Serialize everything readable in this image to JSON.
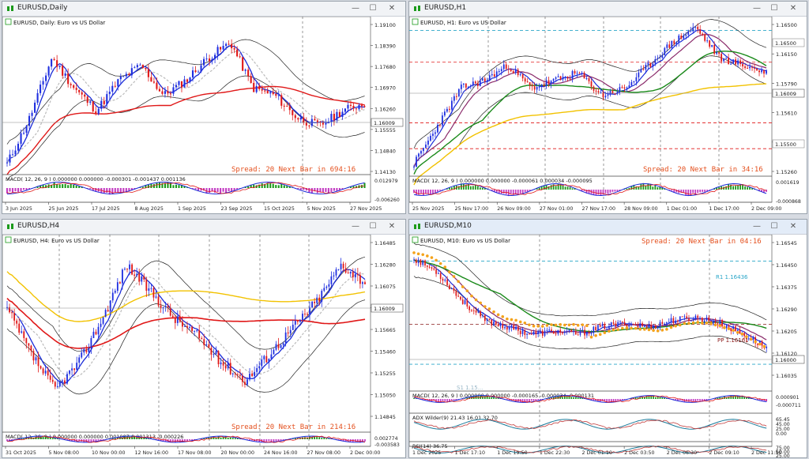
{
  "windows": [
    {
      "id": "daily",
      "title": "EURUSD,Daily",
      "label": "EURUSD, Daily:  Euro vs US Dollar",
      "price_ticks": [
        "1.19100",
        "1.18390",
        "1.17680",
        "1.16970",
        "1.16260",
        "1.15555",
        "1.14840",
        "1.14130"
      ],
      "current_price": "1.16009",
      "spread_text": "Spread: 20  Next Bar in 694:16",
      "macd_label": "MACD( 12, 26, 9 ) 0.000000 0.000000 -0.000301 -0.001437 0.001136",
      "macd_ticks": [
        "0.012979",
        "-0.006260"
      ],
      "time_ticks": [
        "3 Jun 2025",
        "25 Jun 2025",
        "17 Jul 2025",
        "8 Aug 2025",
        "1 Sep 2025",
        "23 Sep 2025",
        "15 Oct 2025",
        "5 Nov 2025",
        "27 Nov 2025"
      ]
    },
    {
      "id": "h1",
      "title": "EURUSD,H1",
      "label": "EURUSD, H1:  Euro vs US Dollar",
      "price_ticks": [
        "1.16500",
        "1.16150",
        "1.15790",
        "1.15610",
        "1.15430",
        "1.15260"
      ],
      "current_price": "1.16009",
      "level_tags": [
        "1.16500",
        "1.15500"
      ],
      "spread_text": "Spread: 20  Next Bar in 34:16",
      "macd_label": "MACD( 12, 26, 9 ) 0.000000 0.000000 -0.000061 0.000034 -0.000095",
      "macd_ticks": [
        "0.001619",
        "-0.000868"
      ],
      "time_ticks": [
        "25 Nov 2025",
        "25 Nov 17:00",
        "26 Nov 09:00",
        "27 Nov 01:00",
        "27 Nov 17:00",
        "28 Nov 09:00",
        "1 Dec 01:00",
        "1 Dec 17:00",
        "2 Dec 09:00"
      ]
    },
    {
      "id": "h4",
      "title": "EURUSD,H4",
      "label": "EURUSD, H4:  Euro vs US Dollar",
      "price_ticks": [
        "1.16485",
        "1.16280",
        "1.16075",
        "1.15870",
        "1.15665",
        "1.15460",
        "1.15255",
        "1.15050",
        "1.14845"
      ],
      "current_price": "1.16009",
      "spread_text": "Spread: 20  Next Bar in 214:16",
      "macd_label": "MACD( 12, 26, 9 ) 0.000000 0.000000 0.001087 0.001313 -0.000226",
      "macd_ticks": [
        "0.002774",
        "-0.003583"
      ],
      "time_ticks": [
        "31 Oct 2025",
        "5 Nov 08:00",
        "10 Nov 00:00",
        "12 Nov 16:00",
        "17 Nov 08:00",
        "20 Nov 00:00",
        "24 Nov 16:00",
        "27 Nov 08:00",
        "2 Dec 00:00"
      ]
    },
    {
      "id": "m10",
      "title": "EURUSD,M10",
      "label": "EURUSD, M10:  Euro vs US Dollar",
      "price_ticks": [
        "1.16545",
        "1.16450",
        "1.16375",
        "1.16290",
        "1.16205",
        "1.16120",
        "1.16035"
      ],
      "current_price": "1.16000",
      "r1_label": "R1 1.16436",
      "pp_label": "PP 1.16161",
      "s_label": "S1 1.15...",
      "spread_text": "Spread: 20  Next Bar in 04:16",
      "macd_label": "MACD( 12, 26, 9 ) 0.000000 0.000000 -0.000165 -0.000034 -0.000131",
      "macd_ticks": [
        "0.000901",
        "-0.000711"
      ],
      "adx_label": "ADX Wilder(9) 21.43 16.01 32.70",
      "adx_ticks": [
        "65.45",
        "45.00",
        "25.00",
        "0.00"
      ],
      "rsi_label": "RSI(14) 36.75",
      "rsi_ticks": [
        "75.00",
        "50.00",
        "25.00"
      ],
      "time_ticks": [
        "1 Dec 2025",
        "1 Dec 17:10",
        "1 Dec 19:50",
        "1 Dec 22:30",
        "2 Dec 01:10",
        "2 Dec 03:50",
        "2 Dec 06:30",
        "2 Dec 09:10",
        "2 Dec 11:50"
      ]
    }
  ],
  "window_buttons": {
    "minimize": "—",
    "maximize": "☐",
    "close": "✕"
  },
  "colors": {
    "bull": "#1f2fe0",
    "bear": "#e01818",
    "ma_red": "#e01818",
    "ma_blue": "#1a2bd8",
    "ma_green": "#1a8a1a",
    "ma_yellow": "#f2c200",
    "spread": "#e4501e",
    "bollinger": "#111111"
  }
}
